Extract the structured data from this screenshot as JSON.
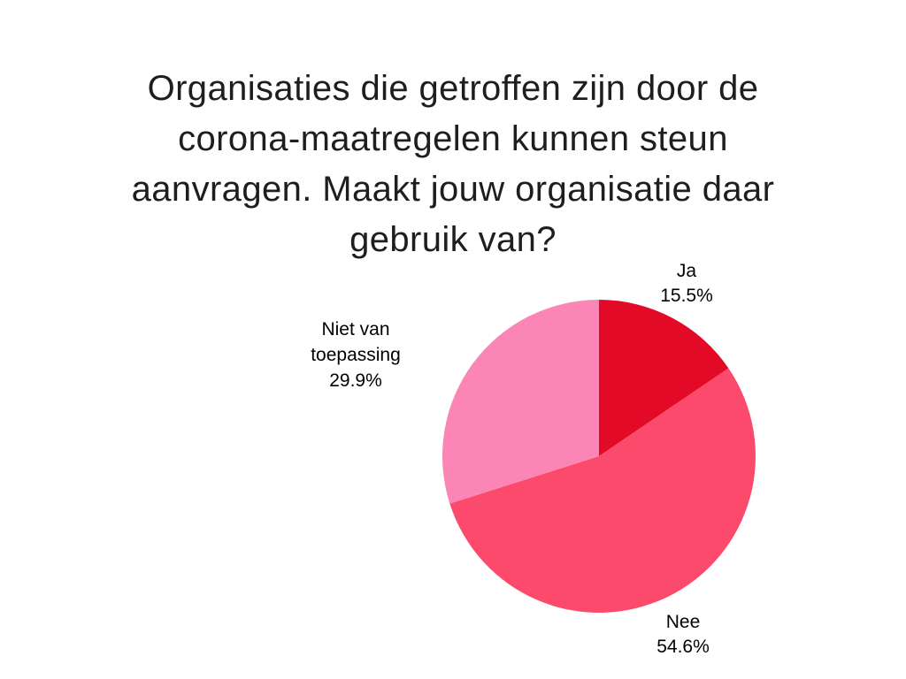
{
  "title_lines": [
    "Organisaties die getroffen zijn door de",
    "corona-maatregelen kunnen steun",
    "aanvragen. Maakt jouw organisatie daar",
    "gebruik van?"
  ],
  "chart_data": {
    "type": "pie",
    "title": "Organisaties die getroffen zijn door de corona-maatregelen kunnen steun aanvragen. Maakt jouw organisatie daar gebruik van?",
    "values_unit": "%",
    "start_angle_deg": 0,
    "direction": "clockwise",
    "legend_position": "outside-labels",
    "background_color": "#ffffff",
    "title_color": "#1e1e1e",
    "label_color": "#000000",
    "slices": [
      {
        "label": "Ja",
        "value": 15.5,
        "display": "15.5%",
        "color": "#e20a26"
      },
      {
        "label": "Nee",
        "value": 54.6,
        "display": "54.6%",
        "color": "#fb4a6b"
      },
      {
        "label": "Niet van toepassing",
        "value": 29.9,
        "display": "29.9%",
        "color": "#fb86b5"
      }
    ]
  }
}
